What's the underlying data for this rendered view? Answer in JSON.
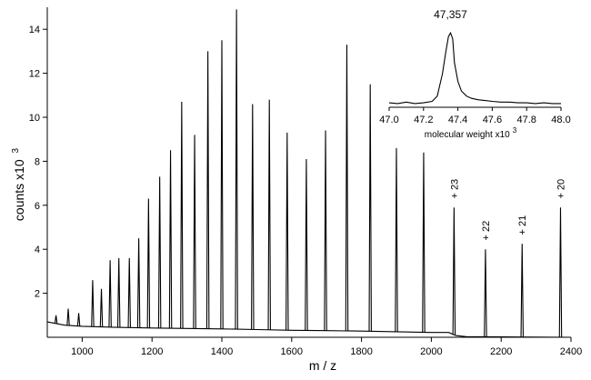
{
  "chart_data": [
    {
      "type": "line",
      "xlabel": "m / z",
      "ylabel": "counts x10",
      "ylabel_exponent": "3",
      "xlim": [
        900,
        2400
      ],
      "ylim": [
        0,
        15
      ],
      "xticks": [
        1000,
        1200,
        1400,
        1600,
        1800,
        2000,
        2200,
        2400
      ],
      "yticks": [
        2,
        4,
        6,
        8,
        10,
        12,
        14
      ],
      "grid": false,
      "baseline": [
        [
          900,
          0.7
        ],
        [
          950,
          0.55
        ],
        [
          1000,
          0.5
        ],
        [
          1100,
          0.45
        ],
        [
          1200,
          0.42
        ],
        [
          1300,
          0.4
        ],
        [
          1400,
          0.38
        ],
        [
          1500,
          0.35
        ],
        [
          1600,
          0.32
        ],
        [
          1700,
          0.3
        ],
        [
          1800,
          0.28
        ],
        [
          1900,
          0.25
        ],
        [
          2000,
          0.22
        ],
        [
          2050,
          0.22
        ],
        [
          2070,
          0.08
        ],
        [
          2100,
          0.03
        ],
        [
          2400,
          0.0
        ]
      ],
      "peaks": [
        {
          "mz": 925,
          "height": 1.0
        },
        {
          "mz": 960,
          "height": 1.3
        },
        {
          "mz": 990,
          "height": 1.1
        },
        {
          "mz": 1030,
          "height": 2.6
        },
        {
          "mz": 1055,
          "height": 2.2
        },
        {
          "mz": 1080,
          "height": 3.5
        },
        {
          "mz": 1105,
          "height": 3.6
        },
        {
          "mz": 1135,
          "height": 3.6
        },
        {
          "mz": 1162,
          "height": 4.5
        },
        {
          "mz": 1190,
          "height": 6.3
        },
        {
          "mz": 1222,
          "height": 7.3
        },
        {
          "mz": 1253,
          "height": 8.5
        },
        {
          "mz": 1285,
          "height": 10.7
        },
        {
          "mz": 1322,
          "height": 9.2
        },
        {
          "mz": 1360,
          "height": 13.0
        },
        {
          "mz": 1400,
          "height": 13.5
        },
        {
          "mz": 1442,
          "height": 14.9
        },
        {
          "mz": 1488,
          "height": 10.6
        },
        {
          "mz": 1536,
          "height": 10.8
        },
        {
          "mz": 1587,
          "height": 9.3
        },
        {
          "mz": 1642,
          "height": 8.1
        },
        {
          "mz": 1697,
          "height": 9.4
        },
        {
          "mz": 1758,
          "height": 13.3
        },
        {
          "mz": 1825,
          "height": 11.5
        },
        {
          "mz": 1900,
          "height": 8.6
        },
        {
          "mz": 1978,
          "height": 8.4
        },
        {
          "mz": 2065,
          "height": 5.9
        },
        {
          "mz": 2155,
          "height": 4.0
        },
        {
          "mz": 2260,
          "height": 4.25
        },
        {
          "mz": 2370,
          "height": 5.9
        }
      ],
      "annotations": [
        {
          "text": "+ 23",
          "x": 2065,
          "y": 6.3
        },
        {
          "text": "+ 22",
          "x": 2155,
          "y": 4.4
        },
        {
          "text": "+ 21",
          "x": 2260,
          "y": 4.65
        },
        {
          "text": "+ 20",
          "x": 2370,
          "y": 6.3
        }
      ]
    },
    {
      "type": "line",
      "role": "inset",
      "xlabel": "molecular weight x10",
      "xlabel_exponent": "3",
      "xlim": [
        47.0,
        48.0
      ],
      "ylim": [
        0,
        1.1
      ],
      "xticks": [
        "47.0",
        "47.2",
        "47.4",
        "47.6",
        "47.8",
        "48.0"
      ],
      "peak_label": "47,357",
      "peak_x": 47.357,
      "series": [
        {
          "points": [
            [
              47.0,
              0.06
            ],
            [
              47.05,
              0.05
            ],
            [
              47.1,
              0.07
            ],
            [
              47.15,
              0.05
            ],
            [
              47.2,
              0.06
            ],
            [
              47.25,
              0.08
            ],
            [
              47.28,
              0.15
            ],
            [
              47.31,
              0.45
            ],
            [
              47.33,
              0.75
            ],
            [
              47.345,
              0.95
            ],
            [
              47.357,
              1.0
            ],
            [
              47.37,
              0.92
            ],
            [
              47.38,
              0.6
            ],
            [
              47.4,
              0.35
            ],
            [
              47.42,
              0.22
            ],
            [
              47.45,
              0.15
            ],
            [
              47.48,
              0.12
            ],
            [
              47.52,
              0.1
            ],
            [
              47.56,
              0.09
            ],
            [
              47.6,
              0.08
            ],
            [
              47.65,
              0.07
            ],
            [
              47.7,
              0.07
            ],
            [
              47.75,
              0.06
            ],
            [
              47.8,
              0.06
            ],
            [
              47.85,
              0.05
            ],
            [
              47.9,
              0.06
            ],
            [
              47.95,
              0.05
            ],
            [
              48.0,
              0.05
            ]
          ]
        }
      ]
    }
  ]
}
